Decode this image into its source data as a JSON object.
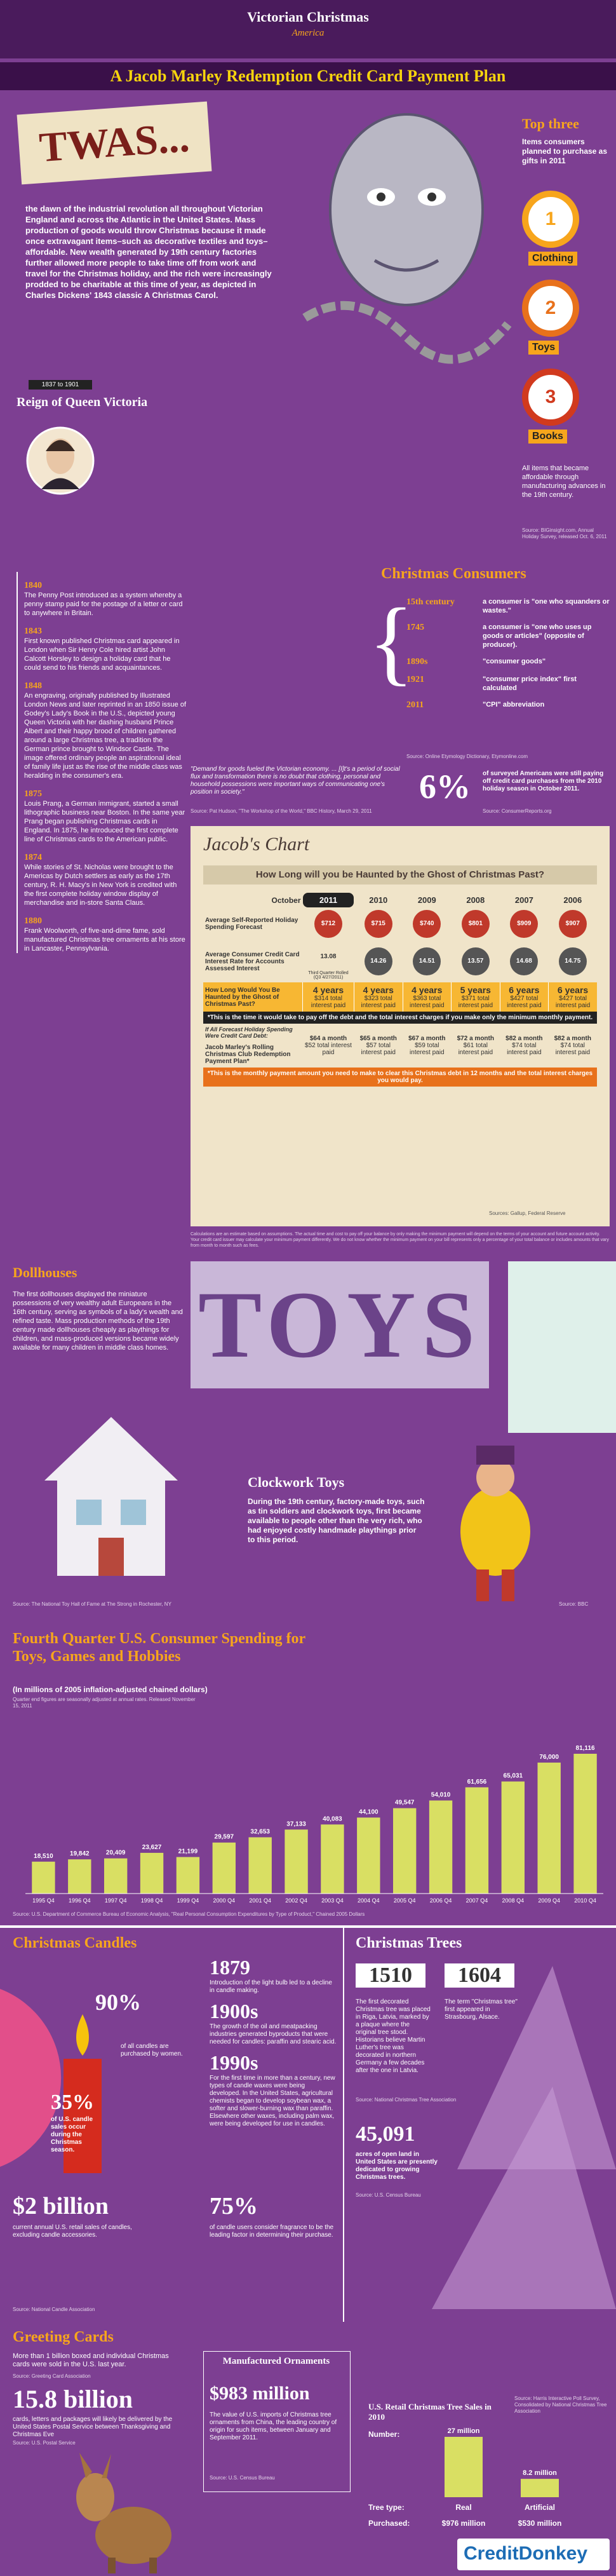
{
  "header": {
    "logo_top": "Victorian Christmas",
    "logo_bottom": "America",
    "title": "A Jacob Marley Redemption Credit Card Payment Plan"
  },
  "intro": {
    "heading": "TWAS...",
    "text": "the dawn of the industrial revolution all throughout Victorian England and across the Atlantic in the United States. Mass production of goods would throw Christmas because it made once extravagant items–such as decorative textiles and toys–affordable. New wealth generated by 19th century factories further allowed more people to take time off from work and travel for the Christmas holiday, and the rich were increasingly prodded to be charitable at this time of year, as depicted in Charles Dickens' 1843 classic A Christmas Carol."
  },
  "top_three": {
    "title": "Top three",
    "subtitle": "Items consumers planned to purchase as gifts in 2011",
    "items": [
      {
        "rank": 1,
        "label": "Clothing"
      },
      {
        "rank": 2,
        "label": "Toys"
      },
      {
        "rank": 3,
        "label": "Books"
      }
    ],
    "note": "All items that became affordable through manufacturing advances in the 19th century.",
    "source": "Source: BIGinsight.com, Annual Holiday Survey, released Oct. 6, 2011"
  },
  "victoria": {
    "dates": "1837 to 1901",
    "title": "Reign of Queen Victoria",
    "events": [
      {
        "year": "1840",
        "text": "The Penny Post introduced as a system whereby a penny stamp paid for the postage of a letter or card to anywhere in Britain."
      },
      {
        "year": "1843",
        "text": "First known published Christmas card appeared in London when Sir Henry Cole hired artist John Calcott Horsley to design a holiday card that he could send to his friends and acquaintances."
      },
      {
        "year": "1848",
        "text": "An engraving, originally published by Illustrated London News and later reprinted in an 1850 issue of Godey's Lady's Book in the U.S., depicted young Queen Victoria with her dashing husband Prince Albert and their happy brood of children gathered around a large Christmas tree, a tradition the German prince brought to Windsor Castle. The image offered ordinary people an aspirational ideal of family life just as the rise of the middle class was heralding in the consumer's era."
      },
      {
        "year": "1875",
        "text": "Louis Prang, a German immigrant, started a small lithographic business near Boston. In the same year Prang began publishing Christmas cards in England. In 1875, he introduced the first complete line of Christmas cards to the American public."
      },
      {
        "year": "1874",
        "text": "While stories of St. Nicholas were brought to the Americas by Dutch settlers as early as the 17th century, R. H. Macy's in New York is credited with the first complete holiday window display of merchandise and in-store Santa Claus."
      },
      {
        "year": "1880",
        "text": "Frank Woolworth, of five-and-dime fame, sold manufactured Christmas tree ornaments at his store in Lancaster, Pennsylvania."
      }
    ]
  },
  "consumers": {
    "title": "Christmas Consumers",
    "entries": [
      {
        "year": "15th century",
        "text": "a consumer is \"one who squanders or wastes.\""
      },
      {
        "year": "1745",
        "text": "a consumer is \"one who uses up goods or articles\" (opposite of producer)."
      },
      {
        "year": "1890s",
        "text": "\"consumer goods\""
      },
      {
        "year": "1921",
        "text": "\"consumer price index\" first calculated"
      },
      {
        "year": "2011",
        "text": "\"CPI\" abbreviation"
      }
    ],
    "source": "Source: Online Etymology Dictionary, Etymonline.com",
    "quote": "\"Demand for goods fueled the Victorian economy. ... [I]t's a period of social flux and transformation there is no doubt that clothing, personal and household possessions were important ways of communicating one's position in society.\"",
    "quote_source": "Source: Pat Hudson, \"The Workshop of the World,\" BBC History, March 29, 2011",
    "stat": "6%",
    "stat_text": "of surveyed Americans were still paying off credit card purchases from the 2010 holiday season in October 2011.",
    "stat_source": "Source: ConsumerReports.org"
  },
  "jacob": {
    "title": "Jacob's Chart",
    "question": "How Long will you be Haunted by the Ghost of Christmas Past?",
    "current_label": "October",
    "columns": [
      "2011",
      "2010",
      "2009",
      "2008",
      "2007",
      "2006"
    ],
    "spending_label": "Average Self-Reported Holiday Spending Forecast",
    "spending": [
      "$712",
      "$715",
      "$740",
      "$801",
      "$909",
      "$907"
    ],
    "rate_label": "Average Consumer Credit Card Interest Rate for Accounts Assessed Interest",
    "rates": [
      "13.08",
      "14.26",
      "14.51",
      "13.57",
      "14.68",
      "14.75"
    ],
    "rate_note": "Third Quarter Rolled (Q3 4/27/2011)",
    "haunted_label": "How Long Would You Be Haunted by the Ghost of Christmas Past?",
    "durations": [
      "4 years",
      "4 years",
      "4 years",
      "5 years",
      "6 years",
      "6 years"
    ],
    "haunted_interest": [
      "$314 total interest paid",
      "$323 total interest paid",
      "$363 total interest paid",
      "$371 total interest paid",
      "$427 total interest paid",
      "$427 total interest paid"
    ],
    "min_note": "*This is the time it would take to pay off the debt and the total interest charges if you make only the minimum monthly payment.",
    "side_label": "If All Forecast Holiday Spending Were Credit Card Debt:",
    "plan_label": "Jacob Marley's Rolling Christmas Club Redemption Payment Plan*",
    "plan_monthly": [
      "$64 a month",
      "$65 a month",
      "$67 a month",
      "$72 a month",
      "$82 a month",
      "$82 a month"
    ],
    "plan_interest": [
      "$52 total interest paid",
      "$57 total interest paid",
      "$59 total interest paid",
      "$61 total interest paid",
      "$74 total interest paid",
      "$74 total interest paid"
    ],
    "plan_note": "*This is the monthly payment amount you need to make to clear this Christmas debt in 12 months and the total interest charges you would pay.",
    "source": "Sources: Gallup, Federal Reserve",
    "footnote": "Calculations are an estimate based on assumptions. The actual time and cost to pay off your balance by only making the minimum payment will depend on the terms of your account and future account activity. Your credit card issuer may calculate your minimum payment differently. We do not know whether the minimum payment on your bill represents only a percentage of your total balance or includes amounts that vary from month to month such as fees."
  },
  "toys": {
    "dollhouse_title": "Dollhouses",
    "dollhouse_text": "The first dollhouses displayed the miniature possessions of very wealthy adult Europeans in the 16th century, serving as symbols of a lady's wealth and refined taste. Mass production methods of the 19th century made dollhouses cheaply as playthings for children, and mass-produced versions became widely available for many children in middle class homes.",
    "dollhouse_source": "Source: The National Toy Hall of Fame at The Strong in Rochester, NY",
    "banner": "TOYS",
    "clockwork_title": "Clockwork Toys",
    "clockwork_text": "During the 19th century, factory-made toys, such as tin soldiers and clockwork toys, first became available to people other than the very rich, who had enjoyed costly handmade playthings prior to this period.",
    "clockwork_source": "Source: BBC"
  },
  "chart_data": {
    "type": "bar",
    "title": "Fourth Quarter U.S. Consumer Spending for Toys, Games and Hobbies",
    "subtitle": "(In millions of 2005 inflation-adjusted chained dollars)",
    "note": "Quarter end figures are seasonally adjusted at annual rates. Released November 15, 2011",
    "categories": [
      "1995 Q4",
      "1996 Q4",
      "1997 Q4",
      "1998 Q4",
      "1999 Q4",
      "2000 Q4",
      "2001 Q4",
      "2002 Q4",
      "2003 Q4",
      "2004 Q4",
      "2005 Q4",
      "2006 Q4",
      "2007 Q4",
      "2008 Q4",
      "2009 Q4",
      "2010 Q4"
    ],
    "values": [
      18510,
      19842,
      20409,
      23627,
      21199,
      29597,
      32653,
      37133,
      40083,
      44100,
      49547,
      54010,
      61656,
      65031,
      76000,
      81116
    ],
    "value_labels": [
      "18,510",
      "19,842",
      "20,409",
      "23,627",
      "21,199",
      "29,597",
      "32,653",
      "37,133",
      "40,083",
      "44,100",
      "49,547",
      "54,010",
      "61,656",
      "65,031",
      "76,000",
      "81,116"
    ],
    "color": "#d9df63",
    "source": "Source: U.S. Department of Commerce Bureau of Economic Analysis, \"Real Personal Consumption Expenditures by Type of Product,\" Chained 2005 Dollars"
  },
  "candles": {
    "title": "Christmas Candles",
    "women_stat": "90%",
    "women_text": "of all candles are purchased by women.",
    "season_stat": "35%",
    "season_text": "of U.S. candle sales occur during the Christmas season.",
    "history": [
      {
        "year": "1879",
        "text": "Introduction of the light bulb led to a decline in candle making."
      },
      {
        "year": "1900s",
        "text": "The growth of the oil and meatpacking industries generated byproducts that were needed for candles: paraffin and stearic acid."
      },
      {
        "year": "1990s",
        "text": "For the first time in more than a century, new types of candle waxes were being developed. In the United States, agricultural chemists began to develop soybean wax, a softer and slower-burning wax than paraffin. Elsewhere other waxes, including palm wax, were being developed for use in candles."
      }
    ],
    "sales_stat": "$2 billion",
    "sales_text": "current annual U.S. retail sales of candles, excluding candle accessories.",
    "fragrance_stat": "75%",
    "fragrance_text": "of candle users consider fragrance to be the leading factor in determining their purchase.",
    "source": "Source: National Candle Association"
  },
  "trees": {
    "title": "Christmas Trees",
    "first_year": "1510",
    "first_text": "The first decorated Christmas tree was placed in Riga, Latvia, marked by a plaque where the original tree stood. Historians believe Martin Luther's tree was decorated in northern Germany a few decades after the one in Latvia.",
    "term_year": "1604",
    "term_text": "The term \"Christmas tree\" first appeared in Strasbourg, Alsace.",
    "first_source": "Source: National Christmas Tree Association",
    "acres_stat": "45,091",
    "acres_text": "acres of open land in United States are presently dedicated to growing Christmas trees.",
    "acres_source": "Source: U.S. Census Bureau"
  },
  "cards": {
    "title": "Greeting Cards",
    "text": "More than 1 billion boxed and individual Christmas cards were sold in the U.S. last year.",
    "source": "Source: Greeting Card Association",
    "stat": "15.8 billion",
    "stat_text": "cards, letters and packages will likely be delivered by the United States Postal Service between Thanksgiving and Christmas Eve",
    "stat_source": "Source: U.S. Postal Service"
  },
  "ornaments": {
    "title": "Manufactured Ornaments",
    "stat": "$983 million",
    "text": "The value of U.S. imports of Christmas tree ornaments from China, the leading country of origin for such items, between January and September 2011.",
    "source": "Source: U.S. Census Bureau"
  },
  "tree_sales": {
    "title": "U.S. Retail Christmas Tree Sales in 2010",
    "number_label": "Number:",
    "type_label": "Tree type:",
    "purchased_label": "Purchased:",
    "types": [
      "Real",
      "Artificial"
    ],
    "numbers": [
      27,
      8.2
    ],
    "number_labels": [
      "27 million",
      "8.2 million"
    ],
    "purchased": [
      "$976 million",
      "$530 million"
    ],
    "colors": [
      "#d9df63",
      "#d9df63"
    ],
    "source": "Source: Harris Interactive Poll Survey, Consolidated by National Christmas Tree Association"
  },
  "footer": {
    "brand": "CreditDonkey"
  }
}
